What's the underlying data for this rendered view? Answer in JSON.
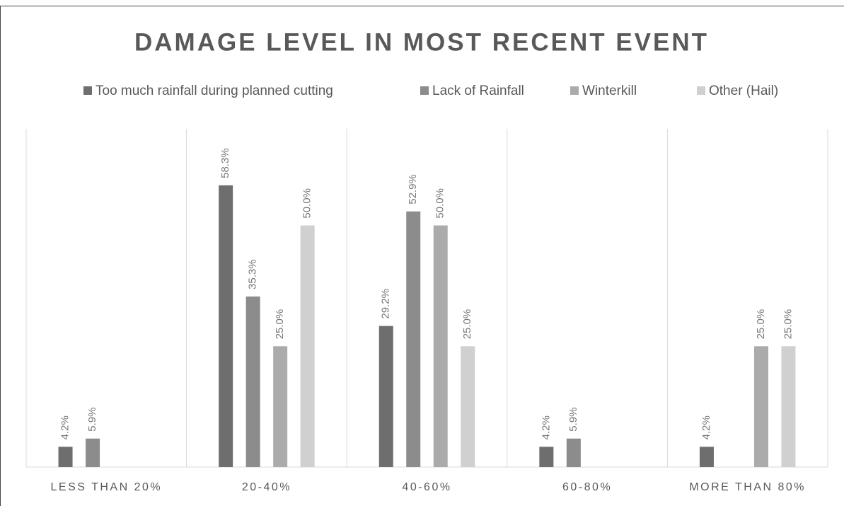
{
  "chart_data": {
    "type": "bar",
    "title": "DAMAGE LEVEL IN MOST RECENT EVENT",
    "categories": [
      "LESS THAN 20%",
      "20-40%",
      "40-60%",
      "60-80%",
      "MORE THAN 80%"
    ],
    "series": [
      {
        "name": "Too much rainfall during planned cutting",
        "color": "#6e6e6e",
        "values": [
          4.2,
          58.3,
          29.2,
          4.2,
          4.2
        ],
        "value_labels": [
          "4.2%",
          "58.3%",
          "29.2%",
          "4.2%",
          "4.2%"
        ]
      },
      {
        "name": "Lack of Rainfall",
        "color": "#8c8c8c",
        "values": [
          5.9,
          35.3,
          52.9,
          5.9,
          null
        ],
        "value_labels": [
          "5.9%",
          "35.3%",
          "52.9%",
          "5.9%",
          null
        ]
      },
      {
        "name": "Winterkill",
        "color": "#ababab",
        "values": [
          null,
          25.0,
          50.0,
          null,
          25.0
        ],
        "value_labels": [
          null,
          "25.0%",
          "50.0%",
          null,
          "25.0%"
        ]
      },
      {
        "name": "Other (Hail)",
        "color": "#d0d0d0",
        "values": [
          null,
          50.0,
          25.0,
          null,
          25.0
        ],
        "value_labels": [
          null,
          "50.0%",
          "25.0%",
          null,
          "25.0%"
        ]
      }
    ],
    "ylim": [
      0,
      70
    ],
    "legend": "top"
  }
}
